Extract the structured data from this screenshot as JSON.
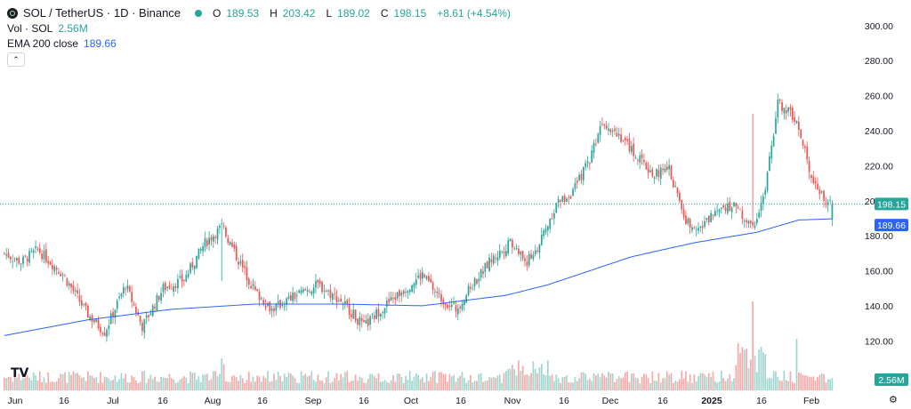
{
  "legend": {
    "symbol": "SOL / TetherUS · 1D · Binance",
    "open_key": "O",
    "open": "189.53",
    "high_key": "H",
    "high": "203.42",
    "low_key": "L",
    "low": "189.02",
    "close_key": "C",
    "close": "198.15",
    "change": "+8.61 (+4.54%)",
    "vol_label": "Vol · SOL",
    "vol_value": "2.56M",
    "ema_label": "EMA 200 close",
    "ema_value": "189.66",
    "collapse_icon": "chevron-up-icon"
  },
  "price_tags": {
    "last_price": "198.15",
    "ema": "189.66",
    "volume": "2.56M"
  },
  "colors": {
    "up": "#26a69a",
    "down": "#ef5350",
    "ema": "#2962ff",
    "vol_up": "#9fd6cf",
    "vol_down": "#f7a9a7"
  },
  "chart_data": {
    "type": "candlestick",
    "title": "SOL / TetherUS · 1D · Binance",
    "ylim": [
      110,
      305
    ],
    "y_ticks": [
      120,
      140,
      160,
      180,
      200,
      220,
      240,
      260,
      280,
      300
    ],
    "x_ticks": [
      "Jun",
      "16",
      "Jul",
      "16",
      "Aug",
      "16",
      "Sep",
      "16",
      "Oct",
      "16",
      "Nov",
      "16",
      "Dec",
      "16",
      "2025",
      "16",
      "Feb"
    ],
    "grid": false,
    "series": [
      {
        "name": "SOL / TetherUS",
        "close_anchors": [
          [
            0,
            170
          ],
          [
            8,
            165
          ],
          [
            16,
            172
          ],
          [
            28,
            158
          ],
          [
            40,
            135
          ],
          [
            48,
            125
          ],
          [
            58,
            152
          ],
          [
            66,
            128
          ],
          [
            76,
            150
          ],
          [
            86,
            155
          ],
          [
            96,
            176
          ],
          [
            104,
            185
          ],
          [
            112,
            166
          ],
          [
            120,
            148
          ],
          [
            128,
            138
          ],
          [
            138,
            145
          ],
          [
            150,
            152
          ],
          [
            162,
            142
          ],
          [
            172,
            128
          ],
          [
            180,
            138
          ],
          [
            190,
            148
          ],
          [
            200,
            158
          ],
          [
            208,
            145
          ],
          [
            216,
            138
          ],
          [
            224,
            152
          ],
          [
            232,
            165
          ],
          [
            242,
            176
          ],
          [
            250,
            165
          ],
          [
            256,
            175
          ],
          [
            264,
            198
          ],
          [
            272,
            205
          ],
          [
            280,
            224
          ],
          [
            286,
            246
          ],
          [
            294,
            238
          ],
          [
            302,
            226
          ],
          [
            310,
            215
          ],
          [
            318,
            218
          ],
          [
            326,
            188
          ],
          [
            334,
            185
          ],
          [
            342,
            198
          ],
          [
            350,
            196
          ],
          [
            358,
            184
          ],
          [
            364,
            206
          ],
          [
            370,
            256
          ],
          [
            378,
            248
          ],
          [
            386,
            215
          ],
          [
            392,
            200
          ],
          [
            396,
            198
          ]
        ],
        "close": 198.15
      },
      {
        "name": "EMA 200 close",
        "anchors": [
          [
            0,
            123
          ],
          [
            40,
            132
          ],
          [
            80,
            138
          ],
          [
            120,
            141
          ],
          [
            160,
            141
          ],
          [
            200,
            140
          ],
          [
            240,
            146
          ],
          [
            260,
            152
          ],
          [
            300,
            168
          ],
          [
            330,
            176
          ],
          [
            360,
            182
          ],
          [
            380,
            189
          ],
          [
            396,
            189.66
          ]
        ],
        "last": 189.66
      },
      {
        "name": "Vol · SOL",
        "last": "2.56M"
      }
    ]
  }
}
